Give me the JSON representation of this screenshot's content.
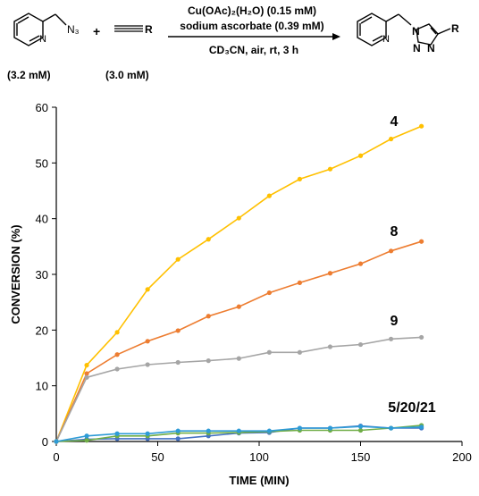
{
  "reaction": {
    "reagent_line1": "Cu(OAc)₂(H₂O) (0.15 mM)",
    "reagent_line2": "sodium ascorbate (0.39 mM)",
    "conditions_line": "CD₃CN, air, rt, 3 h",
    "azide_conc": "(3.2 mM)",
    "alkyne_conc": "(3.0 mM)",
    "azide_label": "N₃",
    "plus": "+",
    "alkyne_r": "R",
    "product_r": "R",
    "product_n1": "N",
    "product_n2": "N",
    "product_n3": "N",
    "pyridine_n": "N"
  },
  "chart_data": {
    "type": "line",
    "xlabel": "TIME (MIN)",
    "ylabel": "CONVERSION (%)",
    "xlim": [
      0,
      200
    ],
    "ylim": [
      0,
      60
    ],
    "xticks": [
      "0",
      "50",
      "100",
      "150",
      "200"
    ],
    "yticks": [
      "0",
      "10",
      "20",
      "30",
      "40",
      "50",
      "60"
    ],
    "grid": false,
    "series": [
      {
        "name": "4",
        "color": "#FFC000",
        "x": [
          0,
          15,
          30,
          45,
          60,
          75,
          90,
          105,
          120,
          135,
          150,
          165,
          180
        ],
        "values": [
          0,
          13.7,
          19.6,
          27.3,
          32.7,
          36.3,
          40.1,
          44.1,
          47.1,
          48.9,
          51.3,
          54.3,
          56.6
        ]
      },
      {
        "name": "8",
        "color": "#ED7D31",
        "x": [
          0,
          15,
          30,
          45,
          60,
          75,
          90,
          105,
          120,
          135,
          150,
          165,
          180
        ],
        "values": [
          0,
          12.2,
          15.6,
          18.0,
          19.9,
          22.5,
          24.2,
          26.7,
          28.5,
          30.2,
          31.9,
          34.2,
          35.9
        ]
      },
      {
        "name": "9",
        "color": "#A5A5A5",
        "x": [
          0,
          15,
          30,
          45,
          60,
          75,
          90,
          105,
          120,
          135,
          150,
          165,
          180
        ],
        "values": [
          0,
          11.5,
          13.0,
          13.8,
          14.2,
          14.5,
          14.9,
          16.0,
          16.0,
          17.0,
          17.4,
          18.4,
          18.7
        ]
      },
      {
        "name": "",
        "color": "#4472C4",
        "x": [
          0,
          15,
          30,
          45,
          60,
          75,
          90,
          105,
          120,
          135,
          150,
          165,
          180
        ],
        "values": [
          0,
          0.4,
          0.5,
          0.5,
          0.5,
          1.0,
          1.5,
          1.6,
          2.4,
          2.4,
          2.8,
          2.4,
          2.4
        ]
      },
      {
        "name": "",
        "color": "#70AD47",
        "x": [
          0,
          15,
          30,
          45,
          60,
          75,
          90,
          105,
          120,
          135,
          150,
          165,
          180
        ],
        "values": [
          0,
          0.2,
          1.0,
          1.0,
          1.5,
          1.5,
          1.6,
          1.8,
          2.0,
          2.0,
          2.0,
          2.4,
          2.9
        ]
      },
      {
        "name": "",
        "color": "#2E9BD6",
        "x": [
          0,
          15,
          30,
          45,
          60,
          75,
          90,
          105,
          120,
          135,
          150,
          165,
          180
        ],
        "values": [
          0,
          1.0,
          1.4,
          1.4,
          1.9,
          1.9,
          1.9,
          1.9,
          2.4,
          2.4,
          2.7,
          2.4,
          2.6
        ]
      }
    ],
    "annotations": [
      "4",
      "8",
      "9",
      "5/20/21"
    ]
  }
}
